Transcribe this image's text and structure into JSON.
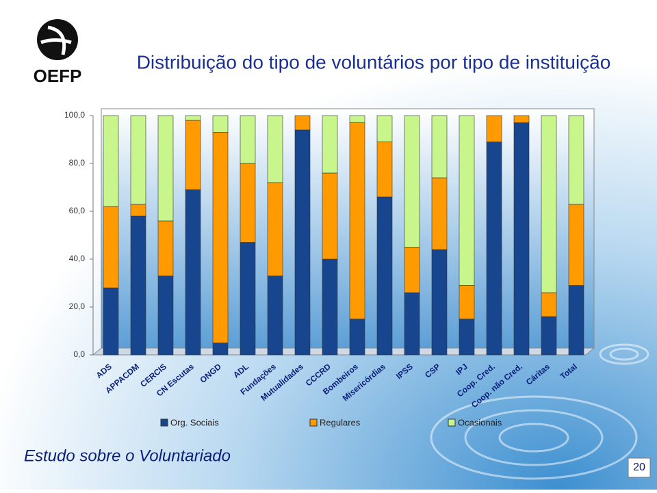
{
  "slide": {
    "logo": "OEFP",
    "footer": "Estudo sobre o Voluntariado",
    "page_number": "20"
  },
  "chart_data": {
    "type": "stacked_bar",
    "title": "Distribuição do tipo de voluntários por tipo de instituição",
    "categories": [
      "ADS",
      "APPACDM",
      "CERCIS",
      "CN Escutas",
      "ONGD",
      "ADL",
      "Fundações",
      "Mutualidades",
      "CCCRD",
      "Bombeiros",
      "Misericórdias",
      "IPSS",
      "CSP",
      "IPJ",
      "Coop. Cred.",
      "Coop. não Cred.",
      "Cáritas",
      "Total"
    ],
    "series": [
      {
        "name": "Org. Sociais",
        "color": "#17468f",
        "values": [
          28,
          58,
          33,
          69,
          5,
          47,
          33,
          94,
          40,
          15,
          66,
          26,
          44,
          15,
          89,
          97,
          16,
          29
        ]
      },
      {
        "name": "Regulares",
        "color": "#ff9a00",
        "values": [
          34,
          5,
          23,
          29,
          88,
          33,
          39,
          6,
          36,
          82,
          23,
          19,
          30,
          14,
          11,
          3,
          10,
          34
        ]
      },
      {
        "name": "Ocasionais",
        "color": "#c8f58c",
        "values": [
          38,
          37,
          44,
          2,
          7,
          20,
          28,
          0,
          24,
          3,
          11,
          55,
          26,
          71,
          0,
          0,
          74,
          37
        ]
      }
    ],
    "ylim": [
      0,
      100
    ],
    "yticks": [
      {
        "value": 0,
        "label": "0,0"
      },
      {
        "value": 20,
        "label": "20,0"
      },
      {
        "value": 40,
        "label": "40,0"
      },
      {
        "value": 60,
        "label": "60,0"
      },
      {
        "value": 80,
        "label": "80,0"
      },
      {
        "value": 100,
        "label": "100,0"
      }
    ],
    "legend": "bottom"
  }
}
